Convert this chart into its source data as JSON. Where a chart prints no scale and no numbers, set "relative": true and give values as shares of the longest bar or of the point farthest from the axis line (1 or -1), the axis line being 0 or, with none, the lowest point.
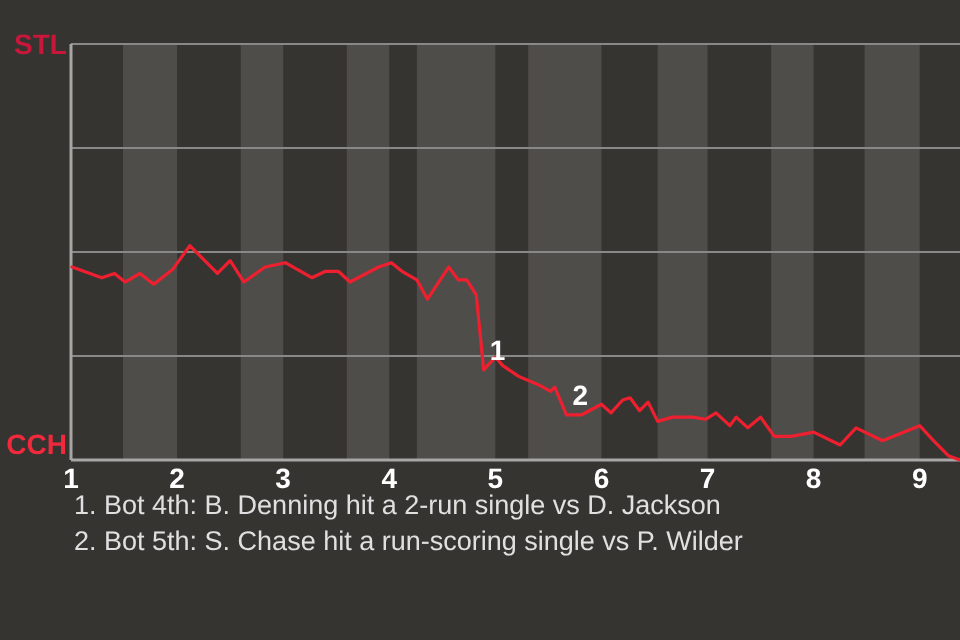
{
  "chart_data": {
    "type": "line",
    "relative": true,
    "x": [
      1.01,
      1.29,
      1.41,
      1.51,
      1.65,
      1.78,
      1.96,
      2.12,
      2.38,
      2.5,
      2.63,
      2.83,
      3.02,
      3.27,
      3.4,
      3.52,
      3.63,
      3.9,
      4.02,
      4.12,
      4.26,
      4.36,
      4.56,
      4.65,
      4.73,
      4.82,
      4.89,
      5,
      5.07,
      5.22,
      5.41,
      5.52,
      5.56,
      5.67,
      5.81,
      6,
      6.09,
      6.2,
      6.27,
      6.36,
      6.44,
      6.53,
      6.67,
      6.86,
      6.98,
      7.08,
      7.21,
      7.27,
      7.38,
      7.5,
      7.63,
      7.79,
      8,
      8.25,
      8.4,
      8.65,
      9,
      9.13,
      9.27,
      9.38
    ],
    "series": [
      {
        "color": "#ee2030",
        "values": [
          0.9,
          0.85,
          0.87,
          0.83,
          0.87,
          0.82,
          0.89,
          1,
          0.87,
          0.93,
          0.83,
          0.9,
          0.92,
          0.85,
          0.88,
          0.88,
          0.83,
          0.9,
          0.92,
          0.88,
          0.84,
          0.75,
          0.9,
          0.84,
          0.84,
          0.77,
          0.42,
          0.48,
          0.44,
          0.39,
          0.35,
          0.32,
          0.34,
          0.21,
          0.21,
          0.26,
          0.22,
          0.28,
          0.29,
          0.23,
          0.27,
          0.18,
          0.2,
          0.2,
          0.19,
          0.22,
          0.16,
          0.2,
          0.15,
          0.2,
          0.11,
          0.11,
          0.13,
          0.07,
          0.15,
          0.09,
          0.16,
          0.09,
          0.02,
          0
        ]
      }
    ],
    "xlim": [
      1,
      9.38
    ],
    "xticks": [
      1,
      2,
      3,
      4,
      5,
      6,
      7,
      8,
      9
    ],
    "ref_lines": [
      {
        "axis": "y",
        "value": 0.485,
        "color": "#8a8886"
      },
      {
        "axis": "y",
        "value": 0.97,
        "color": "#8a8886"
      },
      {
        "axis": "y",
        "value": 1.455,
        "color": "#8a8886"
      },
      {
        "axis": "y",
        "value": 1.94,
        "color": "#8a8886"
      }
    ],
    "bands": [
      {
        "axis": "x",
        "from": 1.49,
        "to": 2,
        "color": "#4f4d4a"
      },
      {
        "axis": "x",
        "from": 2.6,
        "to": 3,
        "color": "#4f4d4a"
      },
      {
        "axis": "x",
        "from": 3.6,
        "to": 4,
        "color": "#4f4d4a"
      },
      {
        "axis": "x",
        "from": 4.26,
        "to": 5,
        "color": "#4f4d4a"
      },
      {
        "axis": "x",
        "from": 5.31,
        "to": 6,
        "color": "#4f4d4a"
      },
      {
        "axis": "x",
        "from": 6.53,
        "to": 7,
        "color": "#4f4d4a"
      },
      {
        "axis": "x",
        "from": 7.6,
        "to": 8,
        "color": "#4f4d4a"
      },
      {
        "axis": "x",
        "from": 8.48,
        "to": 9,
        "color": "#4f4d4a"
      }
    ],
    "annotations": [
      "STL",
      "CCH",
      {
        "text": "1",
        "x": 4.89,
        "y": 0.42
      },
      {
        "text": "2",
        "x": 5.67,
        "y": 0.21
      },
      "1. Bot 4th: B. Denning hit a 2-run single vs D. Jackson",
      "2. Bot 5th: S. Chase hit a run-scoring single vs P. Wilder"
    ]
  }
}
